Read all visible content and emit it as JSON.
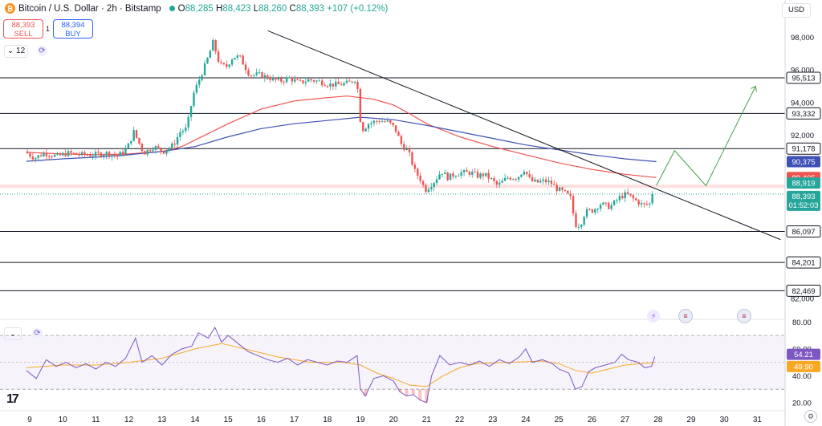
{
  "header": {
    "title": "Bitcoin / U.S. Dollar · 2h · Bitstamp",
    "ohlc": {
      "o_label": "O",
      "o": "88,285",
      "h_label": "H",
      "h": "88,423",
      "l_label": "L",
      "l": "88,260",
      "c_label": "C",
      "c": "88,393",
      "change": "+107 (+0.12%)"
    }
  },
  "trade": {
    "sell_price": "88,393",
    "sell_label": "SELL",
    "buy_price": "88,394",
    "buy_label": "BUY",
    "spread": "1"
  },
  "interval_button": "12",
  "currency": "USD",
  "icons": {
    "coin": "bitcoin-icon",
    "sync": "sync-icon",
    "events": [
      "lightning-event-icon",
      "us-flag-icon",
      "us-flag-icon"
    ],
    "logo": "tradingview-logo",
    "settings": "gear-icon"
  },
  "logo_text": "17",
  "colors": {
    "up": "#26a69a",
    "down": "#ef5350",
    "ma_fast": "#ef5350",
    "ma_slow": "#3f51b5",
    "rsi": "#7e57c2",
    "rsi_ma": "#f9a825",
    "level": "#131722",
    "projection": "#43a047"
  },
  "chart_data": [
    {
      "type": "candlestick",
      "title": "Bitcoin / U.S. Dollar · 2h · Bitstamp",
      "x_ticks": [
        "9",
        "10",
        "11",
        "12",
        "13",
        "14",
        "15",
        "16",
        "17",
        "18",
        "19",
        "20",
        "21",
        "22",
        "23",
        "24",
        "25",
        "26",
        "27",
        "28",
        "29",
        "30",
        "31"
      ],
      "y_ticks": [
        "98,000",
        "96,000",
        "94,000",
        "92,000",
        "82,000"
      ],
      "ylim": [
        81600,
        99300
      ],
      "price_levels": [
        "95,513",
        "93,332",
        "91,178",
        "86,097",
        "84,201",
        "82,469"
      ],
      "price_level_values": [
        95513,
        93332,
        91178,
        86097,
        84201,
        82469
      ],
      "labels": {
        "ma_slow": {
          "text": "90,375",
          "value": 90375
        },
        "ma_fast": {
          "text": "89,405",
          "value": 89405
        },
        "last_high": {
          "text": "88,919",
          "value": 88919
        },
        "last_price": {
          "text": "88,393",
          "value": 88393
        },
        "countdown": "01:52:03"
      },
      "trendline": [
        {
          "x": 16.2,
          "y": 98400
        },
        {
          "x": 31.7,
          "y": 85600
        }
      ],
      "projection": [
        {
          "x": 27.95,
          "y": 88919
        },
        {
          "x": 28.5,
          "y": 91050
        },
        {
          "x": 29.45,
          "y": 88900
        },
        {
          "x": 30.95,
          "y": 95000
        }
      ],
      "series": [
        {
          "name": "price",
          "path": [
            [
              8.9,
              91000
            ],
            [
              9.2,
              90600
            ],
            [
              9.5,
              90900
            ],
            [
              9.9,
              90700
            ],
            [
              10.2,
              90900
            ],
            [
              10.6,
              90800
            ],
            [
              11.0,
              90800
            ],
            [
              11.4,
              90900
            ],
            [
              11.7,
              90700
            ],
            [
              12.0,
              91200
            ],
            [
              12.2,
              92200
            ],
            [
              12.5,
              90900
            ],
            [
              12.8,
              91300
            ],
            [
              13.1,
              91000
            ],
            [
              13.4,
              91400
            ],
            [
              13.6,
              92200
            ],
            [
              13.8,
              92400
            ],
            [
              14.0,
              94500
            ],
            [
              14.2,
              95500
            ],
            [
              14.4,
              96500
            ],
            [
              14.6,
              97700
            ],
            [
              14.8,
              96300
            ],
            [
              15.0,
              96200
            ],
            [
              15.2,
              96800
            ],
            [
              15.4,
              96800
            ],
            [
              15.7,
              95700
            ],
            [
              16.0,
              95700
            ],
            [
              16.3,
              95500
            ],
            [
              16.6,
              95300
            ],
            [
              16.9,
              95500
            ],
            [
              17.2,
              95200
            ],
            [
              17.5,
              95400
            ],
            [
              17.8,
              95300
            ],
            [
              18.1,
              95100
            ],
            [
              18.4,
              95100
            ],
            [
              18.7,
              95200
            ],
            [
              18.95,
              95500
            ],
            [
              19.0,
              93600
            ],
            [
              19.1,
              92300
            ],
            [
              19.3,
              92700
            ],
            [
              19.6,
              92900
            ],
            [
              19.9,
              92800
            ],
            [
              20.1,
              92400
            ],
            [
              20.3,
              91400
            ],
            [
              20.5,
              91000
            ],
            [
              20.7,
              89800
            ],
            [
              20.9,
              89200
            ],
            [
              21.0,
              88600
            ],
            [
              21.3,
              89200
            ],
            [
              21.5,
              89800
            ],
            [
              21.7,
              89400
            ],
            [
              21.9,
              89600
            ],
            [
              22.1,
              89700
            ],
            [
              22.4,
              89700
            ],
            [
              22.6,
              89500
            ],
            [
              22.8,
              89600
            ],
            [
              23.0,
              89300
            ],
            [
              23.2,
              88900
            ],
            [
              23.5,
              89400
            ],
            [
              23.8,
              89400
            ],
            [
              24.0,
              89900
            ],
            [
              24.2,
              89200
            ],
            [
              24.4,
              89100
            ],
            [
              24.6,
              89200
            ],
            [
              24.8,
              89100
            ],
            [
              25.0,
              88700
            ],
            [
              25.2,
              88500
            ],
            [
              25.4,
              88200
            ],
            [
              25.55,
              86500
            ],
            [
              25.7,
              86500
            ],
            [
              25.85,
              87300
            ],
            [
              26.1,
              87400
            ],
            [
              26.3,
              87800
            ],
            [
              26.6,
              87600
            ],
            [
              26.9,
              88200
            ],
            [
              27.1,
              88400
            ],
            [
              27.3,
              88100
            ],
            [
              27.6,
              87700
            ],
            [
              27.8,
              87800
            ],
            [
              27.9,
              88393
            ]
          ]
        },
        {
          "name": "ma_fast",
          "points": [
            [
              8.9,
              90950
            ],
            [
              10.0,
              90850
            ],
            [
              11.0,
              90800
            ],
            [
              12.0,
              90850
            ],
            [
              13.0,
              91000
            ],
            [
              13.6,
              91300
            ],
            [
              14.0,
              91700
            ],
            [
              15.0,
              92700
            ],
            [
              16.0,
              93600
            ],
            [
              17.0,
              94100
            ],
            [
              18.0,
              94300
            ],
            [
              18.6,
              94400
            ],
            [
              19.0,
              94300
            ],
            [
              19.4,
              94200
            ],
            [
              20.0,
              93850
            ],
            [
              20.5,
              93300
            ],
            [
              21.0,
              92700
            ],
            [
              22.0,
              91900
            ],
            [
              23.0,
              91300
            ],
            [
              24.0,
              90800
            ],
            [
              25.0,
              90300
            ],
            [
              26.0,
              89900
            ],
            [
              27.0,
              89600
            ],
            [
              27.95,
              89405
            ]
          ]
        },
        {
          "name": "ma_slow",
          "points": [
            [
              8.9,
              90400
            ],
            [
              10.0,
              90550
            ],
            [
              11.0,
              90650
            ],
            [
              12.0,
              90800
            ],
            [
              13.0,
              91000
            ],
            [
              14.0,
              91300
            ],
            [
              15.0,
              91900
            ],
            [
              16.0,
              92400
            ],
            [
              17.0,
              92700
            ],
            [
              18.0,
              92900
            ],
            [
              19.0,
              93100
            ],
            [
              20.0,
              92950
            ],
            [
              21.0,
              92600
            ],
            [
              22.0,
              92200
            ],
            [
              23.0,
              91800
            ],
            [
              24.0,
              91400
            ],
            [
              25.0,
              91100
            ],
            [
              26.0,
              90800
            ],
            [
              27.0,
              90550
            ],
            [
              27.95,
              90375
            ]
          ]
        }
      ]
    },
    {
      "type": "line",
      "title": "RSI",
      "y_ticks": [
        "80.00",
        "60.00",
        "40.00",
        "20.00"
      ],
      "ylim": [
        14,
        82
      ],
      "band": [
        30,
        70
      ],
      "midline": 50,
      "labels": {
        "rsi": {
          "text": "54.21",
          "value": 54.21
        },
        "rsi_ma": {
          "text": "49.90",
          "value": 49.9
        }
      },
      "series": [
        {
          "name": "rsi",
          "points": [
            [
              8.9,
              44
            ],
            [
              9.2,
              38
            ],
            [
              9.5,
              52
            ],
            [
              9.8,
              47
            ],
            [
              10.1,
              50
            ],
            [
              10.4,
              46
            ],
            [
              10.7,
              49
            ],
            [
              11.0,
              45
            ],
            [
              11.3,
              50
            ],
            [
              11.6,
              47
            ],
            [
              11.9,
              53
            ],
            [
              12.2,
              68
            ],
            [
              12.4,
              50
            ],
            [
              12.7,
              55
            ],
            [
              13.0,
              48
            ],
            [
              13.3,
              56
            ],
            [
              13.6,
              60
            ],
            [
              13.9,
              62
            ],
            [
              14.1,
              72
            ],
            [
              14.4,
              68
            ],
            [
              14.6,
              76
            ],
            [
              14.8,
              65
            ],
            [
              15.0,
              70
            ],
            [
              15.3,
              64
            ],
            [
              15.6,
              58
            ],
            [
              15.9,
              55
            ],
            [
              16.2,
              52
            ],
            [
              16.5,
              50
            ],
            [
              16.8,
              53
            ],
            [
              17.1,
              48
            ],
            [
              17.4,
              52
            ],
            [
              17.7,
              50
            ],
            [
              18.0,
              48
            ],
            [
              18.3,
              51
            ],
            [
              18.6,
              50
            ],
            [
              18.9,
              55
            ],
            [
              19.0,
              30
            ],
            [
              19.15,
              25
            ],
            [
              19.4,
              38
            ],
            [
              19.7,
              40
            ],
            [
              20.0,
              36
            ],
            [
              20.2,
              28
            ],
            [
              20.4,
              25
            ],
            [
              20.6,
              26
            ],
            [
              20.8,
              22
            ],
            [
              21.0,
              20
            ],
            [
              21.15,
              40
            ],
            [
              21.4,
              55
            ],
            [
              21.7,
              48
            ],
            [
              22.0,
              50
            ],
            [
              22.3,
              48
            ],
            [
              22.6,
              51
            ],
            [
              22.9,
              47
            ],
            [
              23.2,
              52
            ],
            [
              23.5,
              49
            ],
            [
              23.8,
              54
            ],
            [
              24.0,
              60
            ],
            [
              24.2,
              50
            ],
            [
              24.5,
              52
            ],
            [
              24.8,
              49
            ],
            [
              25.0,
              45
            ],
            [
              25.3,
              42
            ],
            [
              25.5,
              30
            ],
            [
              25.7,
              32
            ],
            [
              25.9,
              43
            ],
            [
              26.1,
              46
            ],
            [
              26.4,
              48
            ],
            [
              26.7,
              50
            ],
            [
              26.9,
              56
            ],
            [
              27.1,
              52
            ],
            [
              27.4,
              50
            ],
            [
              27.6,
              46
            ],
            [
              27.8,
              47
            ],
            [
              27.9,
              54.21
            ]
          ]
        },
        {
          "name": "rsi_ma",
          "points": [
            [
              8.9,
              46
            ],
            [
              10.0,
              48
            ],
            [
              11.0,
              48
            ],
            [
              12.0,
              50
            ],
            [
              13.0,
              53
            ],
            [
              14.0,
              60
            ],
            [
              14.8,
              64
            ],
            [
              15.5,
              60
            ],
            [
              16.5,
              54
            ],
            [
              17.5,
              50
            ],
            [
              18.5,
              50
            ],
            [
              19.0,
              48
            ],
            [
              19.5,
              42
            ],
            [
              20.0,
              38
            ],
            [
              20.5,
              33
            ],
            [
              21.0,
              32
            ],
            [
              21.5,
              40
            ],
            [
              22.0,
              46
            ],
            [
              22.5,
              49
            ],
            [
              23.5,
              50
            ],
            [
              24.5,
              51
            ],
            [
              25.0,
              49
            ],
            [
              25.5,
              44
            ],
            [
              26.0,
              42
            ],
            [
              26.5,
              45
            ],
            [
              27.0,
              48
            ],
            [
              27.5,
              49
            ],
            [
              27.9,
              49.9
            ]
          ]
        }
      ]
    }
  ]
}
